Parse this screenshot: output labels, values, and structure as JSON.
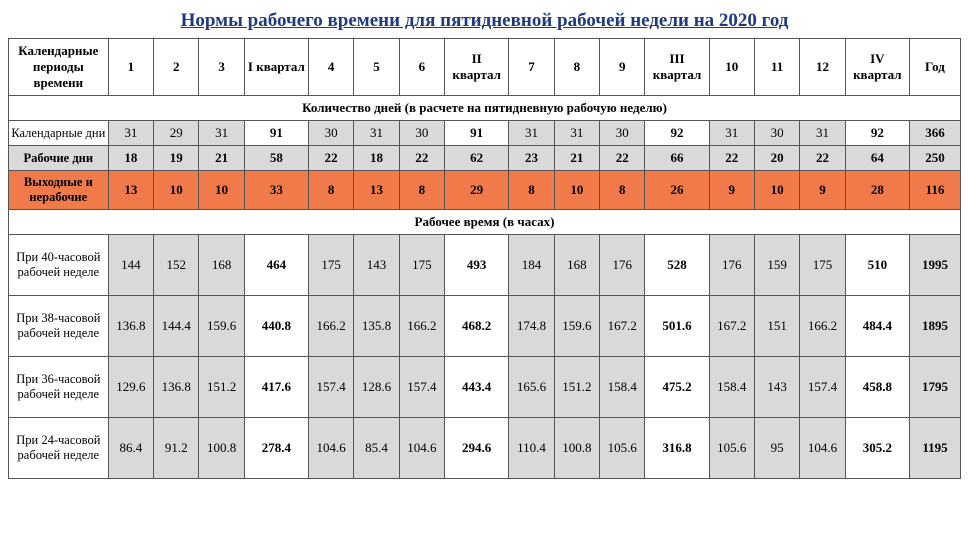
{
  "title": "Нормы рабочего времени для пятидневной рабочей недели на 2020 год",
  "columns": {
    "c0": "Календарные периоды времени",
    "c1": "1",
    "c2": "2",
    "c3": "3",
    "cq1": "I квартал",
    "c4": "4",
    "c5": "5",
    "c6": "6",
    "cq2": "II квартал",
    "c7": "7",
    "c8": "8",
    "c9": "9",
    "cq3": "III квартал",
    "c10": "10",
    "c11": "11",
    "c12": "12",
    "cq4": "IV квартал",
    "cy": "Год"
  },
  "section_days": "Количество дней (в расчете на пятидневную рабочую неделю)",
  "section_hours": "Рабочее время (в часах)",
  "rows": {
    "cal": {
      "label": "Календарные дни",
      "v": [
        "31",
        "29",
        "31",
        "91",
        "30",
        "31",
        "30",
        "91",
        "31",
        "31",
        "30",
        "92",
        "31",
        "30",
        "31",
        "92",
        "366"
      ]
    },
    "work": {
      "label": "Рабочие дни",
      "v": [
        "18",
        "19",
        "21",
        "58",
        "22",
        "18",
        "22",
        "62",
        "23",
        "21",
        "22",
        "66",
        "22",
        "20",
        "22",
        "64",
        "250"
      ]
    },
    "off": {
      "label": "Выходные и нерабочие",
      "v": [
        "13",
        "10",
        "10",
        "33",
        "8",
        "13",
        "8",
        "29",
        "8",
        "10",
        "8",
        "26",
        "9",
        "10",
        "9",
        "28",
        "116"
      ]
    },
    "h40": {
      "label": "При 40-часовой рабочей неделе",
      "v": [
        "144",
        "152",
        "168",
        "464",
        "175",
        "143",
        "175",
        "493",
        "184",
        "168",
        "176",
        "528",
        "176",
        "159",
        "175",
        "510",
        "1995"
      ]
    },
    "h38": {
      "label": "При 38-часовой рабочей неделе",
      "v": [
        "136.8",
        "144.4",
        "159.6",
        "440.8",
        "166.2",
        "135.8",
        "166.2",
        "468.2",
        "174.8",
        "159.6",
        "167.2",
        "501.6",
        "167.2",
        "151",
        "166.2",
        "484.4",
        "1895"
      ]
    },
    "h36": {
      "label": "При 36-часовой рабочей неделе",
      "v": [
        "129.6",
        "136.8",
        "151.2",
        "417.6",
        "157.4",
        "128.6",
        "157.4",
        "443.4",
        "165.6",
        "151.2",
        "158.4",
        "475.2",
        "158.4",
        "143",
        "157.4",
        "458.8",
        "1795"
      ]
    },
    "h24": {
      "label": "При 24-часовой рабочей неделе",
      "v": [
        "86.4",
        "91.2",
        "100.8",
        "278.4",
        "104.6",
        "85.4",
        "104.6",
        "294.6",
        "110.4",
        "100.8",
        "105.6",
        "316.8",
        "105.6",
        "95",
        "104.6",
        "305.2",
        "1195"
      ]
    }
  }
}
